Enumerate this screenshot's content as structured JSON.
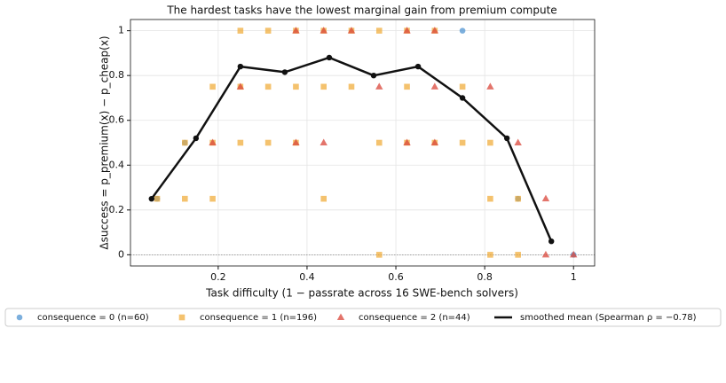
{
  "chart_data": {
    "type": "scatter",
    "title": "The hardest tasks have the lowest marginal gain from premium compute",
    "x_label": "Task difficulty  (1 − passrate across 16 SWE-bench solvers)",
    "y_label": "Δsuccess  =  p_premium(x) − p_cheap(x)",
    "xlim": [
      0.0025,
      1.0475
    ],
    "ylim": [
      -0.05,
      1.05
    ],
    "xticks": [
      0.2,
      0.4,
      0.6,
      0.8,
      1.0
    ],
    "yticks": [
      0.0,
      0.2,
      0.4,
      0.6,
      0.8,
      1.0
    ],
    "grid": true,
    "hline": 0,
    "series": [
      {
        "name": "consequence = 0  (n=60)",
        "color": "#5b9bd5",
        "marker": "circle",
        "x": [
          0.0625,
          0.125,
          0.75,
          0.875,
          1.0
        ],
        "values": [
          0.25,
          0.5,
          1.0,
          0.25,
          0.0
        ]
      },
      {
        "name": "consequence = 1  (n=196)",
        "color": "#f0a830",
        "marker": "square",
        "x": [
          0.0625,
          0.125,
          0.125,
          0.1875,
          0.1875,
          0.1875,
          0.25,
          0.25,
          0.25,
          0.3125,
          0.3125,
          0.3125,
          0.375,
          0.375,
          0.375,
          0.4375,
          0.4375,
          0.4375,
          0.5,
          0.5,
          0.5625,
          0.5625,
          0.5625,
          0.625,
          0.625,
          0.625,
          0.6875,
          0.6875,
          0.75,
          0.75,
          0.8125,
          0.8125,
          0.8125,
          0.875,
          0.875
        ],
        "values": [
          0.25,
          0.25,
          0.5,
          0.75,
          0.5,
          0.25,
          1.0,
          0.75,
          0.5,
          1.0,
          0.75,
          0.5,
          1.0,
          0.75,
          0.5,
          1.0,
          0.75,
          0.25,
          1.0,
          0.75,
          1.0,
          0.5,
          0.0,
          1.0,
          0.75,
          0.5,
          1.0,
          0.5,
          0.75,
          0.5,
          0.5,
          0.25,
          0.0,
          0.25,
          0.0
        ]
      },
      {
        "name": "consequence = 2  (n=44)",
        "color": "#d9453a",
        "marker": "triangle",
        "x": [
          0.1875,
          0.25,
          0.375,
          0.375,
          0.4375,
          0.4375,
          0.5,
          0.5625,
          0.625,
          0.625,
          0.6875,
          0.6875,
          0.6875,
          0.8125,
          0.875,
          0.9375,
          0.9375,
          1.0
        ],
        "values": [
          0.5,
          0.75,
          1.0,
          0.5,
          1.0,
          0.5,
          1.0,
          0.75,
          1.0,
          0.5,
          1.0,
          0.75,
          0.5,
          0.75,
          0.5,
          0.25,
          0.0,
          0.0
        ]
      },
      {
        "name": "smoothed mean  (Spearman ρ = −0.78)",
        "color": "#111111",
        "marker": "line",
        "x": [
          0.05,
          0.15,
          0.25,
          0.35,
          0.45,
          0.55,
          0.65,
          0.75,
          0.85,
          0.95
        ],
        "values": [
          0.25,
          0.52,
          0.84,
          0.815,
          0.88,
          0.8,
          0.84,
          0.7,
          0.52,
          0.06
        ]
      }
    ]
  }
}
